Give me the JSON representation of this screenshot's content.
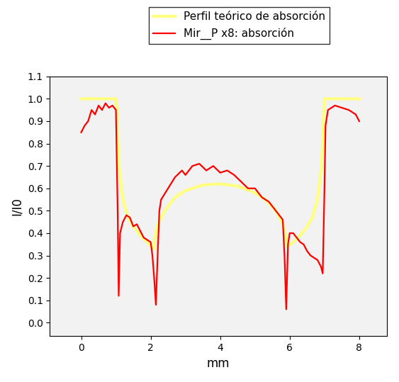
{
  "chart_data": {
    "type": "line",
    "x_label": "mm",
    "y_label": "I/I0",
    "xlim": [
      -0.9,
      8.8
    ],
    "xticks": [
      0,
      2,
      4,
      6,
      8
    ],
    "ylim": [
      -0.06,
      1.1
    ],
    "yticks": [
      {
        "value": 0.0,
        "label": "0.0"
      },
      0.1,
      0.2,
      0.3,
      0.4,
      0.5,
      0.6,
      0.7,
      0.8,
      0.9,
      {
        "value": 1.0,
        "label": "1.0"
      },
      1.1
    ],
    "legend": "upper center",
    "series": [
      {
        "name": "Perfil teórico de absorción",
        "color": "#ffff80",
        "line_style": "solid",
        "x": [
          0,
          0.5,
          1.0,
          1.03,
          1.06,
          1.1,
          1.2,
          1.35,
          1.5,
          1.7,
          1.9,
          2.1,
          2.12,
          2.2,
          2.4,
          2.7,
          3.0,
          3.5,
          4.0,
          4.5,
          5.0,
          5.3,
          5.6,
          5.8,
          5.9,
          5.92,
          6.1,
          6.3,
          6.5,
          6.65,
          6.8,
          6.9,
          6.95,
          6.98,
          7.0,
          7.5,
          8.0
        ],
        "values": [
          1.0,
          1.0,
          1.0,
          0.95,
          0.8,
          0.68,
          0.55,
          0.47,
          0.43,
          0.39,
          0.36,
          0.33,
          0.38,
          0.44,
          0.5,
          0.56,
          0.59,
          0.615,
          0.62,
          0.61,
          0.58,
          0.55,
          0.5,
          0.44,
          0.38,
          0.34,
          0.36,
          0.39,
          0.43,
          0.47,
          0.55,
          0.68,
          0.8,
          0.95,
          1.0,
          1.0,
          1.0
        ]
      },
      {
        "name": "Mir__P x8: absorción",
        "color": "#ff0000",
        "line_style": "solid",
        "x": [
          0,
          0.1,
          0.2,
          0.3,
          0.4,
          0.5,
          0.6,
          0.7,
          0.8,
          0.9,
          1.0,
          1.05,
          1.08,
          1.12,
          1.2,
          1.3,
          1.4,
          1.5,
          1.6,
          1.7,
          1.8,
          1.9,
          2.0,
          2.05,
          2.1,
          2.15,
          2.2,
          2.25,
          2.3,
          2.5,
          2.7,
          2.9,
          3.0,
          3.2,
          3.4,
          3.6,
          3.8,
          4.0,
          4.2,
          4.4,
          4.6,
          4.8,
          5.0,
          5.2,
          5.4,
          5.6,
          5.8,
          5.85,
          5.9,
          5.95,
          6.0,
          6.1,
          6.2,
          6.3,
          6.4,
          6.5,
          6.6,
          6.7,
          6.8,
          6.9,
          6.95,
          7.0,
          7.03,
          7.1,
          7.3,
          7.5,
          7.7,
          7.9,
          8.0
        ],
        "values": [
          0.85,
          0.88,
          0.9,
          0.95,
          0.93,
          0.97,
          0.95,
          0.98,
          0.96,
          0.97,
          0.95,
          0.5,
          0.12,
          0.4,
          0.45,
          0.48,
          0.47,
          0.43,
          0.44,
          0.41,
          0.38,
          0.37,
          0.36,
          0.3,
          0.2,
          0.08,
          0.3,
          0.5,
          0.55,
          0.6,
          0.65,
          0.68,
          0.66,
          0.7,
          0.71,
          0.68,
          0.7,
          0.67,
          0.68,
          0.66,
          0.63,
          0.6,
          0.6,
          0.56,
          0.54,
          0.5,
          0.46,
          0.3,
          0.06,
          0.35,
          0.4,
          0.4,
          0.38,
          0.36,
          0.35,
          0.32,
          0.3,
          0.29,
          0.28,
          0.25,
          0.22,
          0.6,
          0.88,
          0.95,
          0.97,
          0.96,
          0.95,
          0.93,
          0.9
        ]
      }
    ]
  }
}
